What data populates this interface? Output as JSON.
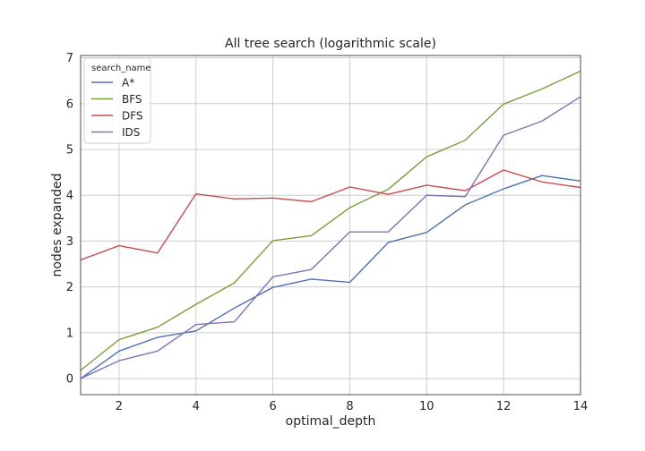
{
  "chart_data": {
    "type": "line",
    "title": "All tree search (logarithmic scale)",
    "xlabel": "optimal_depth",
    "ylabel": "nodes expanded",
    "xlim": [
      1,
      14
    ],
    "ylim": [
      -0.35,
      7.05
    ],
    "xticks": [
      2,
      4,
      6,
      8,
      10,
      12,
      14
    ],
    "yticks": [
      0,
      1,
      2,
      3,
      4,
      5,
      6,
      7
    ],
    "grid": true,
    "legend": {
      "title": "search_name",
      "placement": "top-left"
    },
    "x": [
      1,
      2,
      3,
      4,
      5,
      6,
      7,
      8,
      9,
      10,
      11,
      12,
      13,
      14
    ],
    "series": [
      {
        "name": "A*",
        "color": "#4c72b0",
        "values": [
          0.0,
          0.6,
          0.9,
          1.04,
          1.54,
          1.99,
          2.17,
          2.1,
          2.97,
          3.19,
          3.79,
          4.14,
          4.43,
          4.31
        ]
      },
      {
        "name": "BFS",
        "color": "#7a9e3a",
        "values": [
          0.18,
          0.85,
          1.12,
          1.62,
          2.09,
          3.01,
          3.12,
          3.73,
          4.13,
          4.84,
          5.2,
          5.99,
          6.32,
          6.71
        ]
      },
      {
        "name": "DFS",
        "color": "#c44e52",
        "values": [
          2.59,
          2.9,
          2.74,
          4.03,
          3.92,
          3.94,
          3.86,
          4.18,
          4.02,
          4.22,
          4.1,
          4.55,
          4.29,
          4.17
        ]
      },
      {
        "name": "IDS",
        "color": "#8172b2",
        "values": [
          0.0,
          0.39,
          0.6,
          1.18,
          1.24,
          2.22,
          2.38,
          3.2,
          3.2,
          4.0,
          3.97,
          5.31,
          5.62,
          6.15
        ]
      }
    ]
  }
}
